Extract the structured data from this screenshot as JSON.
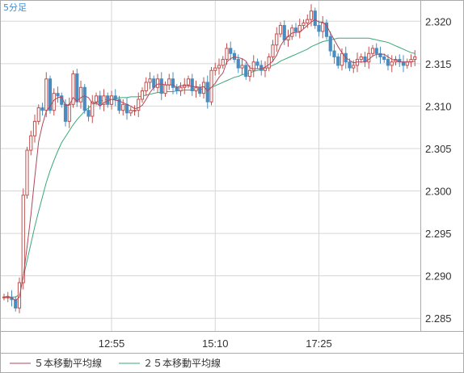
{
  "timeframe_label": "5分足",
  "colors": {
    "up": "#c0504d",
    "down": "#4a8cbf",
    "ma5": "#b0485a",
    "ma25": "#3aa878",
    "grid": "#d6d6d6",
    "frame": "#aaaaaa"
  },
  "legend": [
    {
      "label": "５本移動平均線",
      "color": "#b0485a"
    },
    {
      "label": "２５本移動平均線",
      "color": "#3aa878"
    }
  ],
  "chart_data": {
    "type": "candlestick",
    "x_tick_labels": [
      "12:55",
      "15:10",
      "17:25"
    ],
    "x_tick_bar_index": [
      28,
      55,
      82
    ],
    "ylim": [
      2.2835,
      2.3225
    ],
    "y_ticks": [
      "2.285",
      "2.290",
      "2.295",
      "2.300",
      "2.305",
      "2.310",
      "2.315",
      "2.320"
    ],
    "grid": true,
    "close": [
      2.2875,
      2.2875,
      2.2872,
      2.2862,
      2.2892,
      2.2995,
      2.3048,
      2.3065,
      2.3082,
      2.3098,
      2.3095,
      2.3132,
      2.3095,
      2.3115,
      2.3112,
      2.3102,
      2.3082,
      2.3102,
      2.3138,
      2.3105,
      2.3122,
      2.3095,
      2.3088,
      2.3105,
      2.3112,
      2.3102,
      2.3112,
      2.3102,
      2.3112,
      2.3108,
      2.3095,
      2.3102,
      2.3092,
      2.3095,
      2.3095,
      2.3108,
      2.3118,
      2.3128,
      2.3132,
      2.3122,
      2.3132,
      2.3115,
      2.3125,
      2.3132,
      2.3122,
      2.3118,
      2.3122,
      2.3125,
      2.3132,
      2.3118,
      2.3122,
      2.3115,
      2.3128,
      2.3105,
      2.3142,
      2.3145,
      2.3148,
      2.3155,
      2.3168,
      2.3162,
      2.3155,
      2.3145,
      2.3148,
      2.3135,
      2.3142,
      2.3152,
      2.3148,
      2.3142,
      2.3145,
      2.3158,
      2.3172,
      2.3185,
      2.3195,
      2.3178,
      2.3182,
      2.3192,
      2.3188,
      2.3195,
      2.3198,
      2.3202,
      2.3212,
      2.3195,
      2.3188,
      2.3198,
      2.3182,
      2.3165,
      2.3158,
      2.3148,
      2.3162,
      2.3152,
      2.3145,
      2.3148,
      2.3155,
      2.3158,
      2.3152,
      2.3162,
      2.3168,
      2.3162,
      2.3158,
      2.3155,
      2.3148,
      2.3152,
      2.3155,
      2.3152,
      2.3148,
      2.3152,
      2.3155,
      2.3158
    ],
    "ma5": [
      2.2875,
      2.2876,
      2.2874,
      2.2871,
      2.2875,
      2.2899,
      2.2934,
      2.2972,
      2.3016,
      2.3058,
      2.3078,
      2.3094,
      2.31,
      2.3107,
      2.311,
      2.3111,
      2.3101,
      2.3101,
      2.311,
      2.3106,
      2.311,
      2.3112,
      2.311,
      2.3103,
      2.3104,
      2.31,
      2.3104,
      2.3106,
      2.3108,
      2.3107,
      2.3106,
      2.3104,
      2.3102,
      2.31,
      2.3097,
      2.3098,
      2.3101,
      2.3108,
      2.3116,
      2.3122,
      2.3126,
      2.3126,
      2.3125,
      2.3125,
      2.3125,
      2.3122,
      2.3124,
      2.3124,
      2.3124,
      2.3123,
      2.3123,
      2.3122,
      2.3123,
      2.3118,
      2.3122,
      2.3127,
      2.3134,
      2.3139,
      2.3152,
      2.3156,
      2.3158,
      2.3157,
      2.3156,
      2.3153,
      2.3145,
      2.3144,
      2.3144,
      2.3144,
      2.3146,
      2.3149,
      2.3153,
      2.316,
      2.3171,
      2.3178,
      2.3182,
      2.3186,
      2.3187,
      2.3187,
      2.3191,
      2.3195,
      2.3199,
      2.3202,
      2.3199,
      2.3199,
      2.3195,
      2.3186,
      2.3178,
      2.317,
      2.3163,
      2.3157,
      2.3154,
      2.3151,
      2.3152,
      2.3152,
      2.3152,
      2.3155,
      2.3159,
      2.3161,
      2.3161,
      2.3161,
      2.3158,
      2.3155,
      2.3154,
      2.3152,
      2.3152,
      2.3152,
      2.3152,
      2.3153
    ],
    "ma25": [
      2.2875,
      2.2875,
      2.2875,
      2.2875,
      2.2878,
      2.2898,
      2.2918,
      2.2938,
      2.2958,
      2.2976,
      2.2993,
      2.301,
      2.3024,
      2.3036,
      2.3047,
      2.3057,
      2.3064,
      2.3071,
      2.3078,
      2.3084,
      2.3089,
      2.3094,
      2.3098,
      2.3101,
      2.3104,
      2.3106,
      2.3107,
      2.3108,
      2.3109,
      2.3109,
      2.311,
      2.311,
      2.311,
      2.3111,
      2.3111,
      2.3111,
      2.3112,
      2.3113,
      2.3114,
      2.3115,
      2.3116,
      2.3116,
      2.3117,
      2.3117,
      2.3117,
      2.3118,
      2.3118,
      2.3119,
      2.3119,
      2.3119,
      2.312,
      2.312,
      2.312,
      2.3121,
      2.3122,
      2.3124,
      2.3126,
      2.3128,
      2.313,
      2.3132,
      2.3134,
      2.3135,
      2.3137,
      2.3138,
      2.3139,
      2.3141,
      2.3142,
      2.3143,
      2.3144,
      2.3146,
      2.3148,
      2.315,
      2.3153,
      2.3155,
      2.3157,
      2.3159,
      2.3161,
      2.3163,
      2.3165,
      2.3167,
      2.317,
      2.3172,
      2.3174,
      2.3176,
      2.3177,
      2.3178,
      2.3179,
      2.318,
      2.318,
      2.318,
      2.318,
      2.318,
      2.318,
      2.318,
      2.318,
      2.318,
      2.3179,
      2.3178,
      2.3177,
      2.3176,
      2.3175,
      2.3173,
      2.3171,
      2.3169,
      2.3167,
      2.3165,
      2.3163,
      2.3162
    ]
  }
}
